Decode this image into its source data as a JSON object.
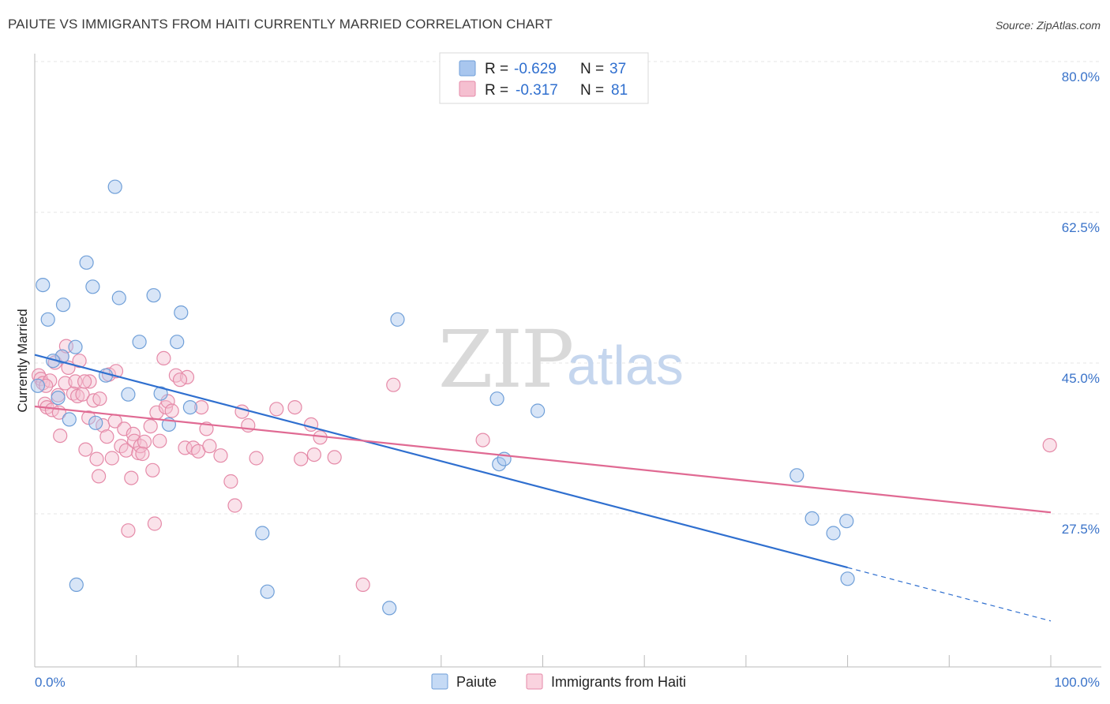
{
  "title": "PAIUTE VS IMMIGRANTS FROM HAITI CURRENTLY MARRIED CORRELATION CHART",
  "source": "Source: ZipAtlas.com",
  "watermark": {
    "zip": "ZIP",
    "atlas": "atlas"
  },
  "legend": {
    "r_label": "R =",
    "n_label": "N =",
    "entries": [
      {
        "r": "-0.629",
        "n": "37",
        "color": "#a8c6ee",
        "stroke": "#6f9fd8"
      },
      {
        "r": "-0.317",
        "n": "81",
        "color": "#f5bfd0",
        "stroke": "#e58aa8"
      }
    ]
  },
  "bottom_legend": [
    {
      "label": "Paiute",
      "color": "#c5daf5",
      "stroke": "#6f9fd8"
    },
    {
      "label": "Immigrants from Haiti",
      "color": "#fad3df",
      "stroke": "#e58aa8"
    }
  ],
  "chart_data": {
    "type": "scatter",
    "title": "PAIUTE VS IMMIGRANTS FROM HAITI CURRENTLY MARRIED CORRELATION CHART",
    "xlabel": "",
    "ylabel": "Currently Married",
    "xlim": [
      0,
      100
    ],
    "ylim": [
      10,
      84
    ],
    "x_ticks": [
      "0.0%",
      "100.0%"
    ],
    "y_ticks": [
      {
        "value": 80,
        "label": "80.0%"
      },
      {
        "value": 62.5,
        "label": "62.5%"
      },
      {
        "value": 45,
        "label": "45.0%"
      },
      {
        "value": 27.5,
        "label": "27.5%"
      }
    ],
    "grid": true,
    "legend_position": "top-center",
    "series": [
      {
        "name": "Paiute",
        "color": "#6f9fd8",
        "fill": "#a8c6ee",
        "r": -0.629,
        "n": 37,
        "trend": {
          "x0": 0,
          "y0": 47.7,
          "x1": 80,
          "y1": 23.0,
          "dash_to_x": 100,
          "dash_to_y": 16.8
        },
        "points": [
          [
            0.3,
            44.1
          ],
          [
            1.3,
            51.8
          ],
          [
            2.3,
            42.7
          ],
          [
            2.7,
            47.5
          ],
          [
            2.8,
            53.5
          ],
          [
            3.4,
            40.2
          ],
          [
            4.0,
            48.6
          ],
          [
            4.1,
            21.0
          ],
          [
            5.1,
            58.4
          ],
          [
            5.7,
            55.6
          ],
          [
            6.0,
            39.8
          ],
          [
            7.0,
            45.3
          ],
          [
            7.9,
            67.2
          ],
          [
            8.3,
            54.3
          ],
          [
            9.2,
            43.1
          ],
          [
            10.3,
            49.2
          ],
          [
            11.7,
            54.6
          ],
          [
            12.4,
            43.2
          ],
          [
            13.2,
            39.6
          ],
          [
            14.0,
            49.2
          ],
          [
            14.4,
            52.6
          ],
          [
            15.3,
            41.6
          ],
          [
            22.4,
            27.0
          ],
          [
            22.9,
            20.2
          ],
          [
            34.9,
            18.3
          ],
          [
            35.7,
            51.8
          ],
          [
            45.5,
            42.6
          ],
          [
            45.7,
            35.0
          ],
          [
            46.2,
            35.6
          ],
          [
            49.5,
            41.2
          ],
          [
            76.5,
            28.7
          ],
          [
            78.6,
            27.0
          ],
          [
            80.0,
            21.7
          ],
          [
            0.8,
            55.8
          ],
          [
            1.8,
            47.0
          ],
          [
            75.0,
            33.7
          ],
          [
            79.9,
            28.4
          ]
        ]
      },
      {
        "name": "Immigrants from Haiti",
        "color": "#e58aa8",
        "fill": "#f5bfd0",
        "r": -0.317,
        "n": 81,
        "trend": {
          "x0": 0,
          "y0": 41.7,
          "x1": 100,
          "y1": 29.4
        },
        "points": [
          [
            0.4,
            45.3
          ],
          [
            0.6,
            44.9
          ],
          [
            0.8,
            44.4
          ],
          [
            1.0,
            42.0
          ],
          [
            1.2,
            41.6
          ],
          [
            1.5,
            44.7
          ],
          [
            1.7,
            41.3
          ],
          [
            2.0,
            46.8
          ],
          [
            2.3,
            43.0
          ],
          [
            2.4,
            41.0
          ],
          [
            2.5,
            38.3
          ],
          [
            2.7,
            47.5
          ],
          [
            3.0,
            44.4
          ],
          [
            3.1,
            48.7
          ],
          [
            3.3,
            46.2
          ],
          [
            3.8,
            43.2
          ],
          [
            4.0,
            44.6
          ],
          [
            4.2,
            42.9
          ],
          [
            4.4,
            47.0
          ],
          [
            4.7,
            43.1
          ],
          [
            5.0,
            36.7
          ],
          [
            5.3,
            40.4
          ],
          [
            5.4,
            44.6
          ],
          [
            5.8,
            42.4
          ],
          [
            6.1,
            35.6
          ],
          [
            6.3,
            33.6
          ],
          [
            6.4,
            42.6
          ],
          [
            6.7,
            39.5
          ],
          [
            7.1,
            38.2
          ],
          [
            7.3,
            45.4
          ],
          [
            7.6,
            35.7
          ],
          [
            7.9,
            40.0
          ],
          [
            8.0,
            45.8
          ],
          [
            8.5,
            37.1
          ],
          [
            8.8,
            39.1
          ],
          [
            9.0,
            36.6
          ],
          [
            9.2,
            27.3
          ],
          [
            9.5,
            33.4
          ],
          [
            9.7,
            38.5
          ],
          [
            9.8,
            37.7
          ],
          [
            10.2,
            36.3
          ],
          [
            10.4,
            37.1
          ],
          [
            10.8,
            37.6
          ],
          [
            11.4,
            39.4
          ],
          [
            11.8,
            28.1
          ],
          [
            12.0,
            41.0
          ],
          [
            12.3,
            37.7
          ],
          [
            12.7,
            47.3
          ],
          [
            12.9,
            41.6
          ],
          [
            13.1,
            42.3
          ],
          [
            13.5,
            41.2
          ],
          [
            13.9,
            45.3
          ],
          [
            14.8,
            36.9
          ],
          [
            15.0,
            45.1
          ],
          [
            15.6,
            36.9
          ],
          [
            16.1,
            36.5
          ],
          [
            16.4,
            41.6
          ],
          [
            16.9,
            39.1
          ],
          [
            17.2,
            37.1
          ],
          [
            19.3,
            33.0
          ],
          [
            19.7,
            30.2
          ],
          [
            20.4,
            41.1
          ],
          [
            21.0,
            39.5
          ],
          [
            21.8,
            35.7
          ],
          [
            23.8,
            41.4
          ],
          [
            25.6,
            41.6
          ],
          [
            26.2,
            35.6
          ],
          [
            27.2,
            39.6
          ],
          [
            27.5,
            36.1
          ],
          [
            28.1,
            38.1
          ],
          [
            29.5,
            35.8
          ],
          [
            32.3,
            21.0
          ],
          [
            35.3,
            44.2
          ],
          [
            44.1,
            37.8
          ],
          [
            99.9,
            37.2
          ],
          [
            10.6,
            36.2
          ],
          [
            18.3,
            36.0
          ],
          [
            1.1,
            44.1
          ],
          [
            4.9,
            44.6
          ],
          [
            11.6,
            34.3
          ],
          [
            14.3,
            44.8
          ]
        ]
      }
    ]
  }
}
